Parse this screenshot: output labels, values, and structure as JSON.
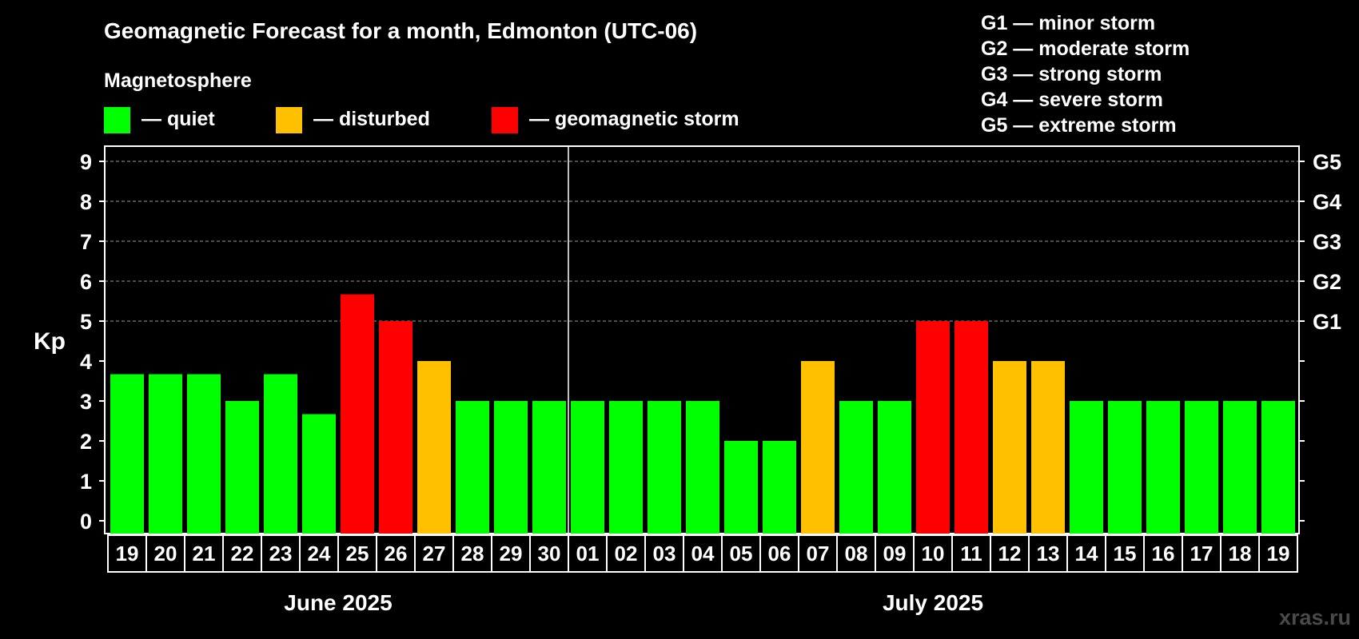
{
  "chart_data": {
    "type": "bar",
    "title": "Geomagnetic Forecast for a month, Edmonton (UTC-06)",
    "ylabel": "Kp",
    "ylim": [
      0,
      9
    ],
    "yticks": [
      0,
      1,
      2,
      3,
      4,
      5,
      6,
      7,
      8,
      9
    ],
    "grid": true,
    "categories": [
      "19",
      "20",
      "21",
      "22",
      "23",
      "24",
      "25",
      "26",
      "27",
      "28",
      "29",
      "30",
      "01",
      "02",
      "03",
      "04",
      "05",
      "06",
      "07",
      "08",
      "09",
      "10",
      "11",
      "12",
      "13",
      "14",
      "15",
      "16",
      "17",
      "18",
      "19"
    ],
    "values": [
      3.67,
      3.67,
      3.67,
      3,
      3.67,
      2.67,
      5.67,
      5,
      4,
      3,
      3,
      3,
      3,
      3,
      3,
      3,
      2,
      2,
      4,
      3,
      3,
      5,
      5,
      4,
      4,
      3,
      3,
      3,
      3,
      3,
      3
    ],
    "months": [
      {
        "label": "June 2025",
        "first_index": 0,
        "last_index": 11
      },
      {
        "label": "July 2025",
        "first_index": 12,
        "last_index": 30
      }
    ],
    "storm_levels": [
      {
        "kp": 5,
        "label": "G1"
      },
      {
        "kp": 6,
        "label": "G2"
      },
      {
        "kp": 7,
        "label": "G3"
      },
      {
        "kp": 8,
        "label": "G4"
      },
      {
        "kp": 9,
        "label": "G5"
      }
    ],
    "legend": {
      "heading": "Magnetosphere",
      "items": [
        {
          "label": "— quiet",
          "color": "#00ff00"
        },
        {
          "label": "— disturbed",
          "color": "#ffc000"
        },
        {
          "label": "— geomagnetic storm",
          "color": "#ff0000"
        }
      ]
    },
    "storm_legend": [
      "G1 — minor storm",
      "G2 — moderate storm",
      "G3 — strong storm",
      "G4 — severe storm",
      "G5 — extreme storm"
    ],
    "thresholds": {
      "disturbed_from": 4,
      "storm_from": 5
    },
    "colors": {
      "quiet": "#00ff00",
      "disturbed": "#ffc000",
      "storm": "#ff0000",
      "background": "#000000",
      "axis": "#ffffff",
      "grid": "#9a9a9a"
    },
    "watermark": "xras.ru"
  }
}
